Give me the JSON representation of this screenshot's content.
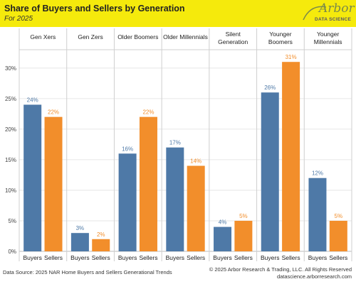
{
  "header": {
    "title": "Share of Buyers and Sellers by Generation",
    "subtitle": "For 2025"
  },
  "logo": {
    "name": "Arbor",
    "tagline": "DATA SCIENCE"
  },
  "footer": {
    "source": "Data Source: 2025 NAR Home Buyers and Sellers Generational Trends",
    "copyright": "© 2025 Arbor Research & Trading, LLC. All Rights Reserved",
    "website": "datascience.arborresearch.com"
  },
  "colors": {
    "buyers": "#4e79a7",
    "sellers": "#f28e2b",
    "title_band": "#f5ea0c"
  },
  "chart_data": {
    "type": "bar",
    "categories": [
      "Gen Xers",
      "Gen Zers",
      "Older Boomers",
      "Older Millennials",
      "Silent Generation",
      "Younger Boomers",
      "Younger Millennials"
    ],
    "category_lines": [
      [
        "Gen Xers"
      ],
      [
        "Gen Zers"
      ],
      [
        "Older Boomers"
      ],
      [
        "Older Millennials"
      ],
      [
        "Silent",
        "Generation"
      ],
      [
        "Younger",
        "Boomers"
      ],
      [
        "Younger",
        "Millennials"
      ]
    ],
    "series": [
      {
        "name": "Buyers",
        "values": [
          24,
          3,
          16,
          17,
          4,
          26,
          12
        ],
        "labels": [
          "24%",
          "3%",
          "16%",
          "17%",
          "4%",
          "26%",
          "12%"
        ]
      },
      {
        "name": "Sellers",
        "values": [
          22,
          2,
          22,
          14,
          5,
          31,
          5
        ],
        "labels": [
          "22%",
          "2%",
          "22%",
          "14%",
          "5%",
          "31%",
          "5%"
        ]
      }
    ],
    "y_ticks": [
      0,
      5,
      10,
      15,
      20,
      25,
      30
    ],
    "y_tick_labels": [
      "0%",
      "5%",
      "10%",
      "15%",
      "20%",
      "25%",
      "30%"
    ],
    "ylim": [
      0,
      33
    ],
    "grid": true,
    "title": "Share of Buyers and Sellers by Generation",
    "subtitle": "For 2025"
  }
}
